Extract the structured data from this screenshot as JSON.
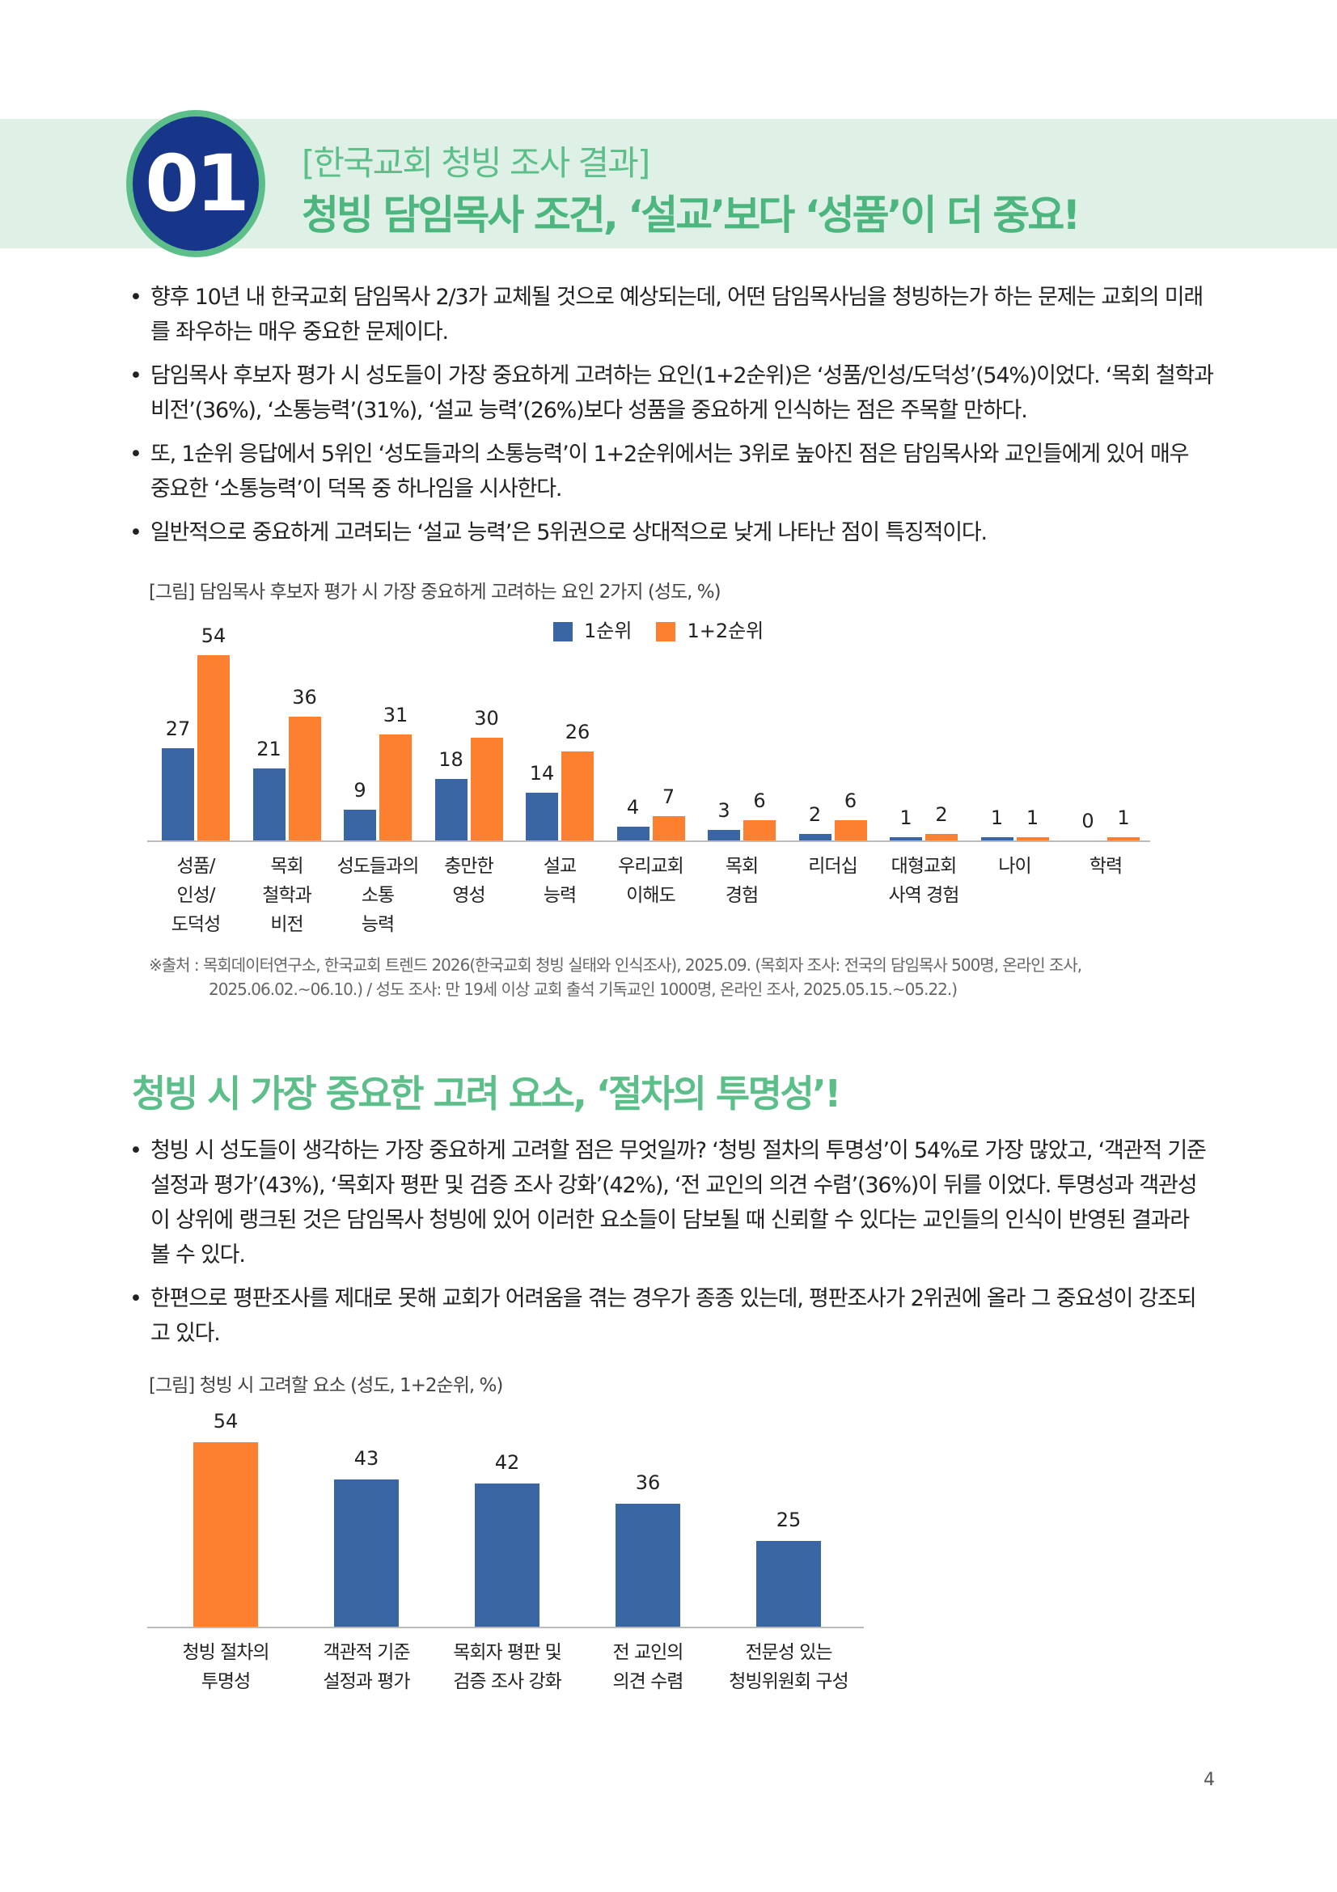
{
  "header": {
    "number": "01",
    "subtitle": "[한국교회 청빙 조사 결과]",
    "title": "청빙 담임목사 조건, ‘설교’보다 ‘성품’이 더 중요!",
    "band_color": "#dff0e6",
    "badge_color": "#17368a",
    "accent_color": "#5cbf8a"
  },
  "section1": {
    "bullets": [
      "향후 10년 내 한국교회 담임목사 2/3가 교체될 것으로 예상되는데, 어떤 담임목사님을 청빙하는가 하는 문제는 교회의 미래를 좌우하는 매우 중요한 문제이다.",
      "담임목사 후보자 평가 시 성도들이 가장 중요하게 고려하는 요인(1+2순위)은 ‘성품/인성/도덕성’(54%)이었다. ‘목회 철학과 비전’(36%), ‘소통능력’(31%), ‘설교 능력’(26%)보다 성품을 중요하게 인식하는 점은 주목할 만하다.",
      "또, 1순위 응답에서 5위인 ‘성도들과의 소통능력’이 1+2순위에서는 3위로 높아진 점은 담임목사와 교인들에게 있어 매우 중요한 ‘소통능력’이 덕목 중 하나임을 시사한다.",
      "일반적으로 중요하게 고려되는 ‘설교 능력’은 5위권으로 상대적으로 낮게 나타난 점이 특징적이다."
    ],
    "source": [
      "※출처 : 목회데이터연구소, 한국교회 트렌드 2026(한국교회 청빙 실태와 인식조사), 2025.09. (목회자 조사: 전국의 담임목사 500명, 온라인 조사,",
      "2025.06.02.~06.10.) / 성도 조사: 만 19세 이상 교회 출석 기독교인 1000명, 온라인 조사, 2025.05.15.~05.22.)"
    ]
  },
  "section2": {
    "heading": "청빙 시 가장 중요한 고려 요소, ‘절차의 투명성’!",
    "bullets": [
      "청빙 시 성도들이 생각하는 가장 중요하게 고려할 점은 무엇일까? ‘청빙 절차의 투명성’이 54%로 가장 많았고, ‘객관적 기준 설정과 평가’(43%), ‘목회자 평판 및 검증 조사 강화’(42%), ‘전 교인의 의견 수렴’(36%)이 뒤를 이었다. 투명성과 객관성이 상위에 랭크된 것은 담임목사 청빙에 있어 이러한 요소들이 담보될 때 신뢰할 수 있다는 교인들의 인식이 반영된 결과라 볼 수 있다.",
      "한편으로 평판조사를 제대로 못해 교회가 어려움을 겪는 경우가 종종 있는데, 평판조사가 2위권에 올라 그 중요성이 강조되고 있다."
    ]
  },
  "chart_data": [
    {
      "type": "bar",
      "title": "[그림] 담임목사 후보자 평가 시 가장 중요하게 고려하는 요인 2가지 (성도, %)",
      "categories": [
        "성품/\n인성/\n도덕성",
        "목회\n철학과\n비전",
        "성도들과의\n소통\n능력",
        "충만한\n영성",
        "설교\n능력",
        "우리교회\n이해도",
        "목회\n경험",
        "리더십",
        "대형교회\n사역 경험",
        "나이",
        "학력"
      ],
      "series": [
        {
          "name": "1순위",
          "color": "#3a65a3",
          "values": [
            27,
            21,
            9,
            18,
            14,
            4,
            3,
            2,
            1,
            1,
            0
          ]
        },
        {
          "name": "1+2순위",
          "color": "#fd8030",
          "values": [
            54,
            36,
            31,
            30,
            26,
            7,
            6,
            6,
            2,
            1,
            1
          ]
        }
      ],
      "ylim": [
        0,
        54
      ],
      "grid": false,
      "legend": "top-center"
    },
    {
      "type": "bar",
      "title": "[그림] 청빙 시 고려할 요소 (성도, 1+2순위, %)",
      "categories": [
        "청빙 절차의\n투명성",
        "객관적 기준\n설정과 평가",
        "목회자 평판 및\n검증 조사 강화",
        "전 교인의\n의견 수렴",
        "전문성 있는\n청빙위원회 구성"
      ],
      "values": [
        54,
        43,
        42,
        36,
        25
      ],
      "colors": [
        "#fd8030",
        "#3a65a3",
        "#3a65a3",
        "#3a65a3",
        "#3a65a3"
      ],
      "ylim": [
        0,
        54
      ],
      "grid": false
    }
  ],
  "page_number": "4"
}
